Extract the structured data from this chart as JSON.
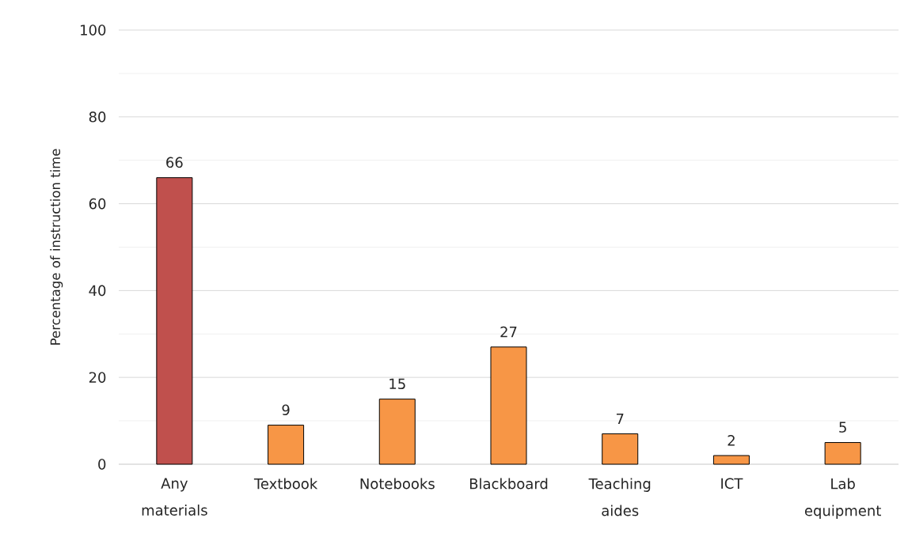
{
  "chart_data": {
    "type": "bar",
    "ylabel": "Percentage of instruction time",
    "categories": [
      "Any materials",
      "Textbook",
      "Notebooks",
      "Blackboard",
      "Teaching aides",
      "ICT",
      "Lab equipment"
    ],
    "values": [
      66,
      9,
      15,
      27,
      7,
      2,
      5
    ],
    "colors": [
      "#c0504d",
      "#f79646",
      "#f79646",
      "#f79646",
      "#f79646",
      "#f79646",
      "#f79646"
    ],
    "ylim": [
      0,
      100
    ],
    "yticks": [
      0,
      {
        "value": 10,
        "label": null
      },
      20,
      {
        "value": 30,
        "label": null
      },
      40,
      {
        "value": 50,
        "label": null
      },
      60,
      {
        "value": 70,
        "label": null
      },
      80,
      {
        "value": 90,
        "label": null
      },
      100
    ],
    "grid": "y",
    "data_labels": true
  }
}
